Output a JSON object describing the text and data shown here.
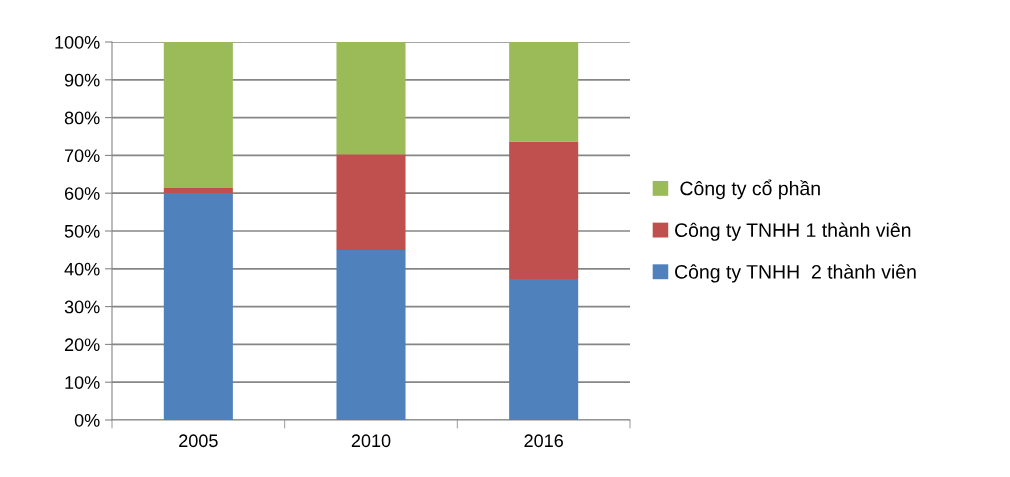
{
  "chart_data": {
    "type": "bar",
    "stacked": true,
    "categories": [
      "2005",
      "2010",
      "2016"
    ],
    "series": [
      {
        "name": "Công ty TNHH  2 thành viên",
        "color": "#4f81bd",
        "values": [
          60,
          45,
          37.3
        ]
      },
      {
        "name": "Công ty TNHH 1 thành viên",
        "color": "#c0504d",
        "values": [
          1.4,
          25.3,
          36.4
        ]
      },
      {
        "name": " Công ty cổ phần",
        "color": "#9bbb59",
        "values": [
          38.6,
          29.7,
          26.3
        ]
      }
    ],
    "ylim": [
      0,
      100
    ],
    "yticks": [
      {
        "value": 0,
        "label": "0%"
      },
      {
        "value": 10,
        "label": "10%"
      },
      {
        "value": 20,
        "label": "20%"
      },
      {
        "value": 30,
        "label": "30%"
      },
      {
        "value": 40,
        "label": "40%"
      },
      {
        "value": 50,
        "label": "50%"
      },
      {
        "value": 60,
        "label": "60%"
      },
      {
        "value": 70,
        "label": "70%"
      },
      {
        "value": 80,
        "label": "80%"
      },
      {
        "value": 90,
        "label": "90%"
      },
      {
        "value": 100,
        "label": "100%"
      }
    ],
    "grid": "y",
    "legend": "right"
  }
}
